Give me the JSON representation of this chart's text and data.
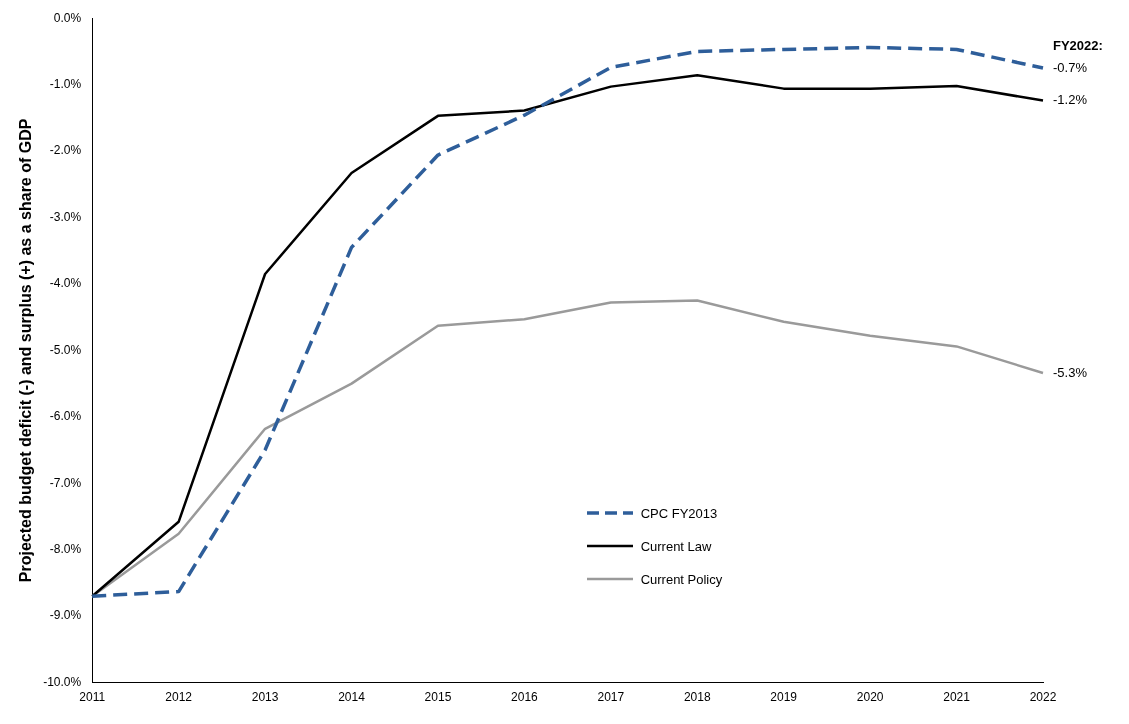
{
  "chart_data": {
    "type": "line",
    "ylabel": "Projected budget deficit (-) and surplus (+) as a share of GDP",
    "categories": [
      "2011",
      "2012",
      "2013",
      "2014",
      "2015",
      "2016",
      "2017",
      "2018",
      "2019",
      "2020",
      "2021",
      "2022"
    ],
    "series": [
      {
        "name": "CPC FY2013",
        "color": "#2e5e9a",
        "line_style": "dashed",
        "values": [
          -8.7,
          -8.63,
          -6.5,
          -3.45,
          -2.06,
          -1.46,
          -0.74,
          -0.5,
          -0.47,
          -0.44,
          -0.47,
          -0.75
        ],
        "value_labels": [
          null,
          null,
          null,
          null,
          null,
          null,
          null,
          null,
          null,
          null,
          null,
          "-0.7%"
        ]
      },
      {
        "name": "Current Law",
        "color": "#000000",
        "line_style": "solid",
        "values": [
          -8.7,
          -7.58,
          -3.85,
          -2.33,
          -1.47,
          -1.39,
          -1.03,
          -0.86,
          -1.06,
          -1.06,
          -1.02,
          -1.24
        ],
        "value_labels": [
          null,
          null,
          null,
          null,
          null,
          null,
          null,
          null,
          null,
          null,
          null,
          "-1.2%"
        ]
      },
      {
        "name": "Current Policy",
        "color": "#9a9a9a",
        "line_style": "solid",
        "values": [
          -8.7,
          -7.76,
          -6.18,
          -5.5,
          -4.63,
          -4.53,
          -4.28,
          -4.25,
          -4.57,
          -4.78,
          -4.94,
          -5.34
        ],
        "value_labels": [
          null,
          null,
          null,
          null,
          null,
          null,
          null,
          null,
          null,
          null,
          null,
          "-5.3%"
        ]
      }
    ],
    "ylim": [
      -10,
      0
    ],
    "yticks": [
      {
        "value": -10,
        "label": "-10.0%"
      },
      {
        "value": -9,
        "label": "-9.0%"
      },
      {
        "value": -8,
        "label": "-8.0%"
      },
      {
        "value": -7,
        "label": "-7.0%"
      },
      {
        "value": -6,
        "label": "-6.0%"
      },
      {
        "value": -5,
        "label": "-5.0%"
      },
      {
        "value": -4,
        "label": "-4.0%"
      },
      {
        "value": -3,
        "label": "-3.0%"
      },
      {
        "value": -2,
        "label": "-2.0%"
      },
      {
        "value": -1,
        "label": "-1.0%"
      },
      {
        "value": 0,
        "label": "0.0%"
      }
    ],
    "annotations": [
      "FY2022:"
    ],
    "grid": false,
    "legend": "bottom",
    "marker": "none"
  }
}
